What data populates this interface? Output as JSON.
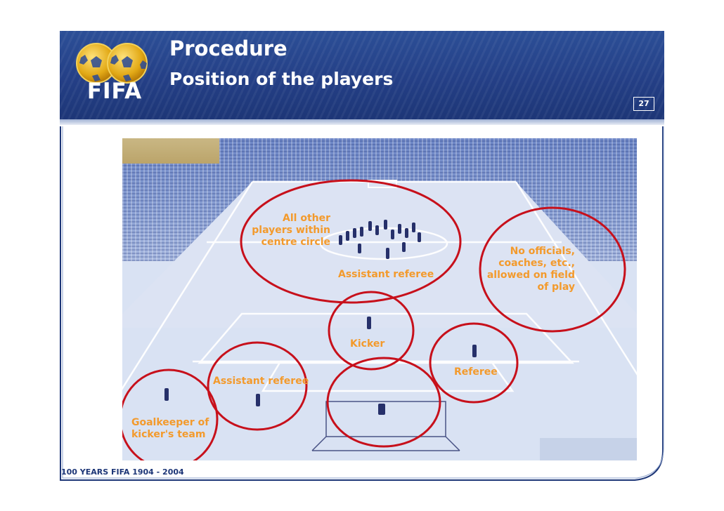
{
  "header": {
    "logo_text": "FIFA",
    "title": "Procedure",
    "subtitle": "Position of the players",
    "page_number": "27"
  },
  "figure": {
    "labels": {
      "all_other_players": [
        "All other",
        "players within",
        "centre circle"
      ],
      "assistant_referee_top": "Assistant referee",
      "no_officials": [
        "No officials,",
        "coaches, etc.,",
        "allowed on field",
        "of play"
      ],
      "kicker": "Kicker",
      "referee": "Referee",
      "assistant_referee_bottom": "Assistant referee",
      "goalkeeper": [
        "Goalkeeper of",
        "kicker's team"
      ]
    },
    "colors": {
      "circle": "#c7101b",
      "label": "#f39a2c",
      "pitch": "#d9e2f3",
      "players": "#26306a"
    }
  },
  "footer": {
    "text": "100 YEARS FIFA  1904 - 2004"
  }
}
